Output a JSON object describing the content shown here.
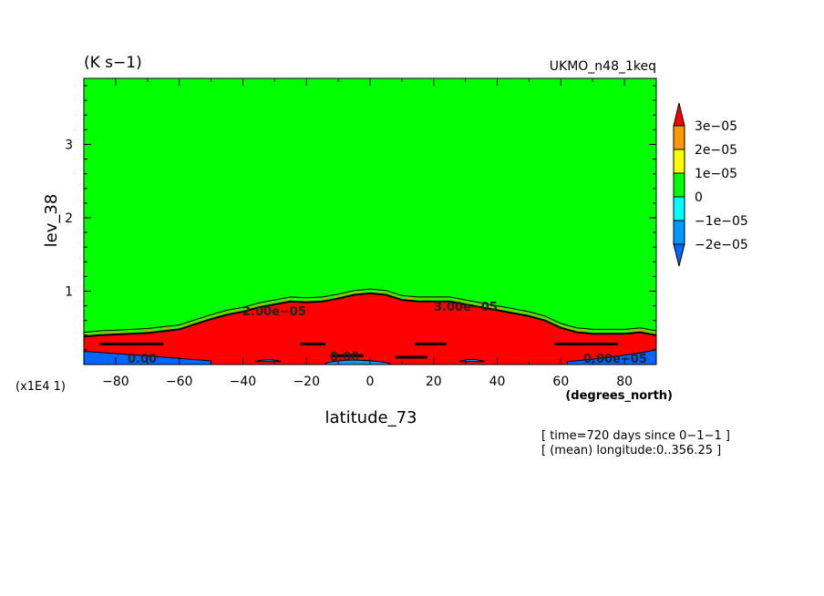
{
  "chart_data": {
    "type": "heatmap",
    "subtype": "filled-contour",
    "units_label": "(K s−1)",
    "dataset_label": "UKMO_n48_1keq",
    "xlabel": "latitude_73",
    "x_units": "(degrees_north)",
    "ylabel": "lev_38",
    "y_scale_note": "(x1E4 1)",
    "xlim": [
      -90,
      90
    ],
    "ylim": [
      0,
      3.9
    ],
    "x_ticks": [
      -80,
      -60,
      -40,
      -20,
      0,
      20,
      40,
      60,
      80
    ],
    "x_tick_labels": [
      "−80",
      "−60",
      "−40",
      "−20",
      "0",
      "20",
      "40",
      "60",
      "80"
    ],
    "y_ticks": [
      1,
      2,
      3
    ],
    "y_tick_labels": [
      "1",
      "2",
      "3"
    ],
    "background_color": "#00ff00",
    "contour_levels": [
      -2e-05,
      -1e-05,
      0,
      1e-05,
      2e-05,
      3e-05
    ],
    "colorbar": {
      "labels": [
        "3e−05",
        "2e−05",
        "1e−05",
        "0",
        "−1e−05",
        "−2e−05"
      ],
      "colors": {
        "above_max": "#ff0000",
        "2e-05_3e-05": "#ff9900",
        "1e-05_2e-05": "#ffff00",
        "0_1e-05": "#00ff00",
        "-1e-05_0": "#00ffff",
        "-2e-05_-1e-05": "#0099ff",
        "below_min": "#0066ff"
      }
    },
    "red_region_top": {
      "lat": [
        -90,
        -85,
        -80,
        -70,
        -60,
        -55,
        -50,
        -45,
        -40,
        -35,
        -30,
        -25,
        -20,
        -15,
        -10,
        -5,
        0,
        5,
        10,
        15,
        20,
        25,
        30,
        35,
        40,
        45,
        50,
        55,
        60,
        65,
        70,
        80,
        85,
        90
      ],
      "lev": [
        0.38,
        0.4,
        0.41,
        0.43,
        0.48,
        0.55,
        0.62,
        0.68,
        0.72,
        0.78,
        0.82,
        0.86,
        0.85,
        0.86,
        0.9,
        0.95,
        0.97,
        0.95,
        0.88,
        0.86,
        0.86,
        0.86,
        0.82,
        0.78,
        0.74,
        0.7,
        0.66,
        0.6,
        0.5,
        0.44,
        0.42,
        0.42,
        0.44,
        0.4
      ]
    },
    "contour_labels": [
      "2.00e−05",
      "3.00e−05",
      "0.00",
      "0.00",
      "0.00e−05"
    ],
    "annotations": [
      "[ time=720 days since 0−1−1 ]",
      "[ (mean) longitude:0..356.25 ]"
    ]
  }
}
